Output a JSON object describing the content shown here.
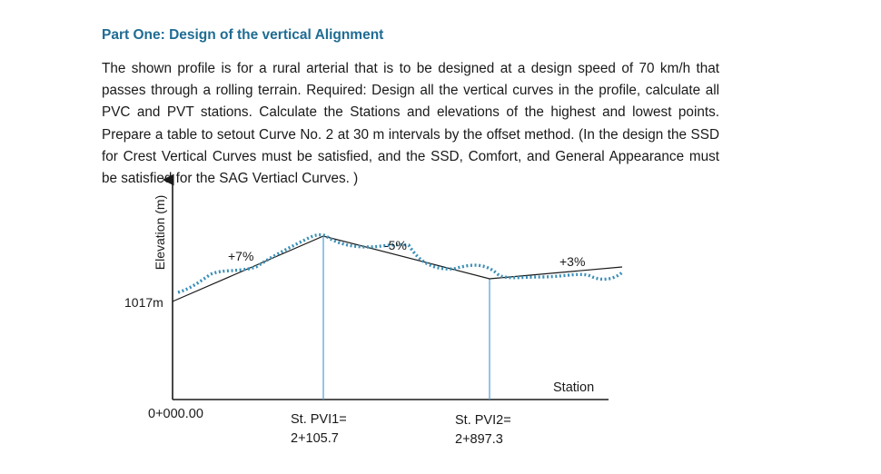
{
  "heading": "Part One: Design of the vertical Alignment",
  "paragraph": [
    "The shown profile is for a rural arterial that is to be designed at a design speed of 70",
    "km/h that passes through a rolling terrain. Required: Design all the vertical curves in the",
    "profile, calculate all PVC and PVT stations. Calculate the Stations and elevations of the",
    "highest and lowest points. Prepare a table to setout Curve No. 2 at 30 m intervals by the",
    "offset method. (In the design the SSD for Crest Vertical Curves must be satisfied, and the",
    "SSD, Comfort, and General Appearance must be satisfied for the SAG Vertiacl Curves. )"
  ],
  "profile": {
    "y_axis_label": "Elevation (m)",
    "x_axis_label": "Station",
    "start_elevation": "1017m",
    "start_station": "0+000.00",
    "grades": [
      "+7%",
      "-5%",
      "+3%"
    ],
    "pvi1_label": "St. PVI1=",
    "pvi1_station": "2+105.7",
    "pvi2_label": "St. PVI2=",
    "pvi2_station": "2+897.3",
    "colors": {
      "ground_line": "#3a8fb7",
      "pvi_line": "#4a9ed8",
      "heading": "#1f6c93"
    }
  }
}
